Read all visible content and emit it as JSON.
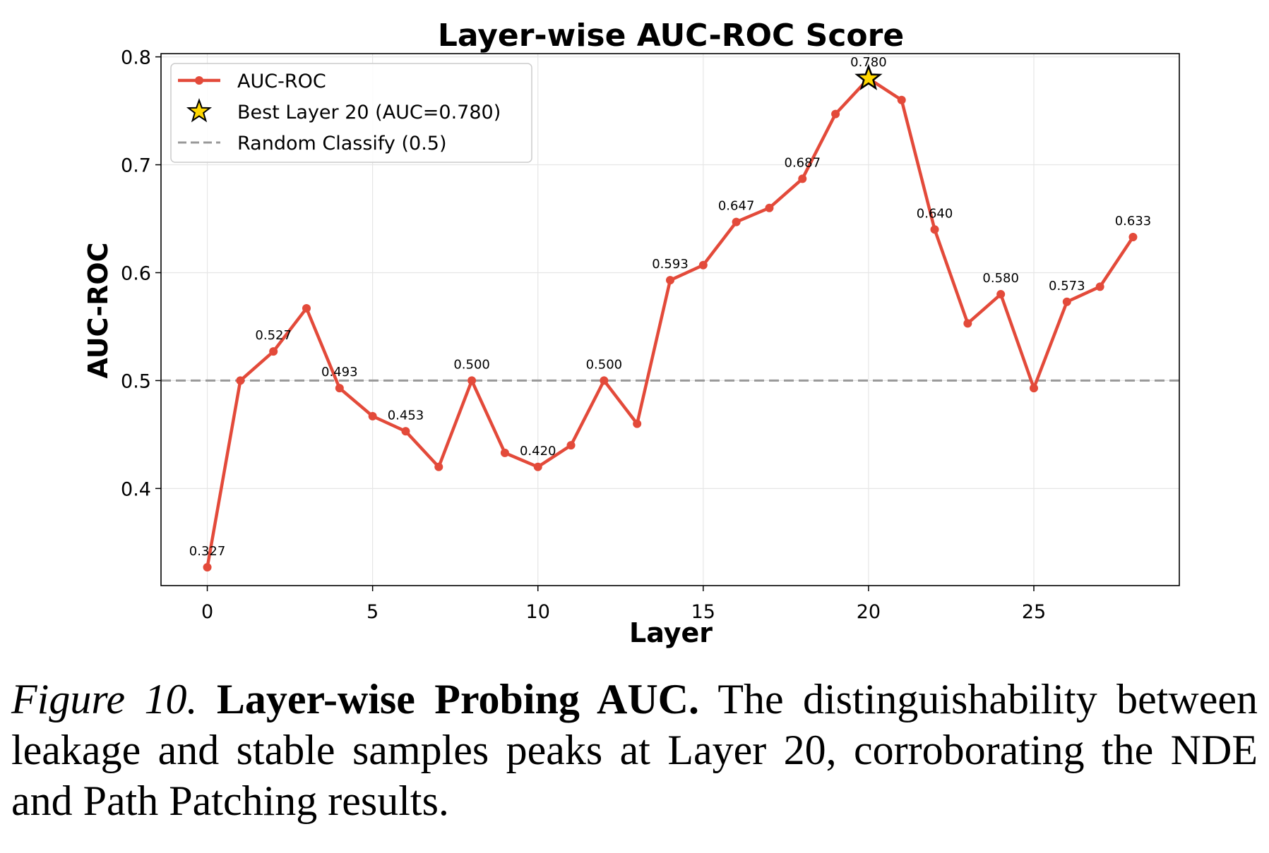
{
  "chart_data": {
    "type": "line",
    "title": "Layer-wise AUC-ROC Score",
    "xlabel": "Layer",
    "ylabel": "AUC-ROC",
    "xlim": [
      -1.4,
      29.4
    ],
    "ylim": [
      0.31,
      0.803
    ],
    "xticks": [
      0,
      5,
      10,
      15,
      20,
      25
    ],
    "yticks": [
      0.4,
      0.5,
      0.6,
      0.7,
      0.8
    ],
    "grid": true,
    "legend_position": "upper-left",
    "series": [
      {
        "name": "AUC-ROC",
        "color": "#e34a3a",
        "x": [
          0,
          1,
          2,
          3,
          4,
          5,
          6,
          7,
          8,
          9,
          10,
          11,
          12,
          13,
          14,
          15,
          16,
          17,
          18,
          19,
          20,
          21,
          22,
          23,
          24,
          25,
          26,
          27,
          28
        ],
        "y": [
          0.327,
          0.5,
          0.527,
          0.567,
          0.493,
          0.467,
          0.453,
          0.42,
          0.5,
          0.433,
          0.42,
          0.44,
          0.5,
          0.46,
          0.593,
          0.607,
          0.647,
          0.66,
          0.687,
          0.747,
          0.78,
          0.76,
          0.64,
          0.553,
          0.58,
          0.493,
          0.573,
          0.587,
          0.633
        ]
      }
    ],
    "best_point": {
      "name": "Best Layer 20 (AUC=0.780)",
      "x": 20,
      "y": 0.78,
      "marker": "star",
      "color": "#ffd700"
    },
    "reference_line": {
      "name": "Random Classify (0.5)",
      "y": 0.5,
      "color": "#999999",
      "style": "dashed"
    },
    "annotations": [
      {
        "x": 0,
        "y": 0.327,
        "text": "0.327"
      },
      {
        "x": 2,
        "y": 0.527,
        "text": "0.527"
      },
      {
        "x": 4,
        "y": 0.493,
        "text": "0.493"
      },
      {
        "x": 6,
        "y": 0.453,
        "text": "0.453"
      },
      {
        "x": 8,
        "y": 0.5,
        "text": "0.500"
      },
      {
        "x": 10,
        "y": 0.42,
        "text": "0.420"
      },
      {
        "x": 12,
        "y": 0.5,
        "text": "0.500"
      },
      {
        "x": 14,
        "y": 0.593,
        "text": "0.593"
      },
      {
        "x": 16,
        "y": 0.647,
        "text": "0.647"
      },
      {
        "x": 18,
        "y": 0.687,
        "text": "0.687"
      },
      {
        "x": 20,
        "y": 0.78,
        "text": "0.780"
      },
      {
        "x": 22,
        "y": 0.64,
        "text": "0.640"
      },
      {
        "x": 24,
        "y": 0.58,
        "text": "0.580"
      },
      {
        "x": 26,
        "y": 0.573,
        "text": "0.573"
      },
      {
        "x": 28,
        "y": 0.633,
        "text": "0.633"
      }
    ]
  },
  "caption": {
    "figure_number": "Figure 10.",
    "heading": "Layer-wise Probing AUC.",
    "text": "The distinguishability between leakage and stable samples peaks at Layer 20, corroborating the NDE and Path Patching results."
  }
}
